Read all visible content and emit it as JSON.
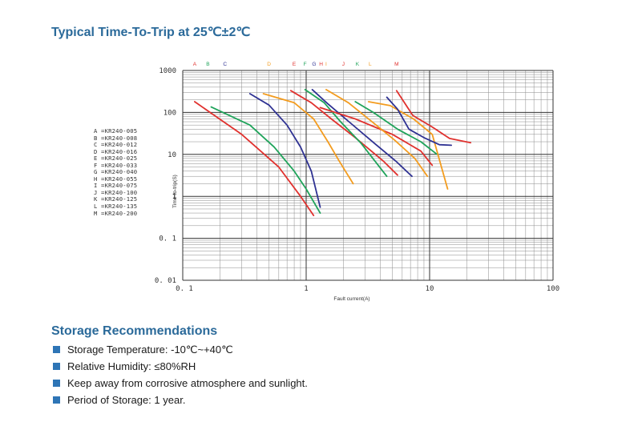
{
  "title": "Typical Time-To-Trip at 25℃±2℃",
  "chart_data": {
    "type": "line",
    "xscale": "log",
    "yscale": "log",
    "xlim": [
      0.1,
      100
    ],
    "ylim": [
      0.01,
      1000
    ],
    "xlabel": "Fault current(A)",
    "ylabel": "Time-to-trip(S)",
    "x_ticks": [
      "0. 1",
      "1",
      "10",
      "100"
    ],
    "y_ticks": [
      "0. 01",
      "0. 1",
      "1",
      "10",
      "100",
      "1000"
    ],
    "grid": true,
    "legend": [
      "A =KR240-005",
      "B =KR240-008",
      "C =KR240-012",
      "D =KR240-016",
      "E =KR240-025",
      "F =KR240-033",
      "G =KR240-040",
      "H =KR240-055",
      "I =KR240-075",
      "J =KR240-100",
      "K =KR240-125",
      "L =KR240-135",
      "M =KR240-200"
    ],
    "top_letters": [
      {
        "label": "A",
        "x": 0.125,
        "color": "#e0312e"
      },
      {
        "label": "B",
        "x": 0.16,
        "color": "#1fa35a"
      },
      {
        "label": "C",
        "x": 0.22,
        "color": "#2e3192"
      },
      {
        "label": "D",
        "x": 0.5,
        "color": "#f39c1f"
      },
      {
        "label": "E",
        "x": 0.8,
        "color": "#e0312e"
      },
      {
        "label": "F",
        "x": 0.98,
        "color": "#1fa35a"
      },
      {
        "label": "G",
        "x": 1.16,
        "color": "#2e3192"
      },
      {
        "label": "H",
        "x": 1.32,
        "color": "#e0312e"
      },
      {
        "label": "I",
        "x": 1.45,
        "color": "#f39c1f"
      },
      {
        "label": "J",
        "x": 2.0,
        "color": "#e0312e"
      },
      {
        "label": "K",
        "x": 2.6,
        "color": "#1fa35a"
      },
      {
        "label": "L",
        "x": 3.3,
        "color": "#f39c1f"
      },
      {
        "label": "M",
        "x": 5.4,
        "color": "#e0312e"
      }
    ],
    "series": [
      {
        "color": "#e0312e",
        "points": [
          [
            0.125,
            180
          ],
          [
            0.3,
            30
          ],
          [
            0.6,
            5
          ],
          [
            0.9,
            1
          ],
          [
            1.15,
            0.35
          ]
        ]
      },
      {
        "color": "#1fa35a",
        "points": [
          [
            0.17,
            135
          ],
          [
            0.35,
            50
          ],
          [
            0.55,
            15
          ],
          [
            0.8,
            4
          ],
          [
            1.0,
            1.5
          ],
          [
            1.3,
            0.4
          ]
        ]
      },
      {
        "color": "#2e3192",
        "points": [
          [
            0.35,
            280
          ],
          [
            0.5,
            150
          ],
          [
            0.7,
            50
          ],
          [
            0.9,
            15
          ],
          [
            1.1,
            4
          ],
          [
            1.3,
            0.55
          ]
        ]
      },
      {
        "color": "#f39c1f",
        "points": [
          [
            0.45,
            280
          ],
          [
            0.8,
            170
          ],
          [
            1.15,
            70
          ],
          [
            1.5,
            20
          ],
          [
            1.85,
            7
          ],
          [
            2.4,
            2
          ]
        ]
      },
      {
        "color": "#e0312e",
        "points": [
          [
            0.75,
            330
          ],
          [
            1.1,
            170
          ],
          [
            1.6,
            70
          ],
          [
            2.5,
            25
          ],
          [
            4.2,
            7
          ],
          [
            5.5,
            3.2
          ]
        ]
      },
      {
        "color": "#1fa35a",
        "points": [
          [
            0.98,
            350
          ],
          [
            1.4,
            170
          ],
          [
            1.9,
            60
          ],
          [
            2.8,
            18
          ],
          [
            4.5,
            3
          ]
        ]
      },
      {
        "color": "#2e3192",
        "points": [
          [
            1.12,
            350
          ],
          [
            1.5,
            160
          ],
          [
            2.3,
            55
          ],
          [
            3.6,
            18
          ],
          [
            5.3,
            7
          ],
          [
            7.2,
            3
          ]
        ]
      },
      {
        "color": "#e0312e",
        "points": [
          [
            1.3,
            130
          ],
          [
            2.5,
            70
          ],
          [
            5,
            30
          ],
          [
            8.5,
            12
          ],
          [
            10.5,
            5.5
          ]
        ]
      },
      {
        "color": "#f39c1f",
        "points": [
          [
            1.45,
            350
          ],
          [
            2.2,
            170
          ],
          [
            3.3,
            65
          ],
          [
            5.2,
            22
          ],
          [
            7.6,
            8
          ],
          [
            9.6,
            3
          ]
        ]
      },
      {
        "color": "#1fa35a",
        "points": [
          [
            2.5,
            180
          ],
          [
            3.5,
            100
          ],
          [
            5.5,
            40
          ],
          [
            8.5,
            20
          ],
          [
            11.5,
            10
          ]
        ]
      },
      {
        "color": "#f39c1f",
        "points": [
          [
            3.2,
            180
          ],
          [
            4.8,
            145
          ],
          [
            7.4,
            70
          ],
          [
            10.5,
            30
          ],
          [
            14,
            1.5
          ]
        ]
      },
      {
        "color": "#2e3192",
        "points": [
          [
            4.5,
            230
          ],
          [
            5.5,
            120
          ],
          [
            6.8,
            40
          ],
          [
            9,
            25
          ],
          [
            12,
            17
          ],
          [
            15,
            16.5
          ]
        ]
      },
      {
        "color": "#e0312e",
        "points": [
          [
            5.4,
            330
          ],
          [
            7.3,
            85
          ],
          [
            10.5,
            45
          ],
          [
            14.5,
            24
          ],
          [
            21.5,
            19
          ]
        ]
      }
    ]
  },
  "storage": {
    "title": "Storage Recommendations",
    "items": [
      "Storage Temperature: -10℃~+40℃",
      "Relative Humidity: ≤80%RH",
      "Keep away from corrosive atmosphere and sunlight.",
      "Period of Storage: 1 year."
    ],
    "bullet_color": "#2e75b6"
  }
}
